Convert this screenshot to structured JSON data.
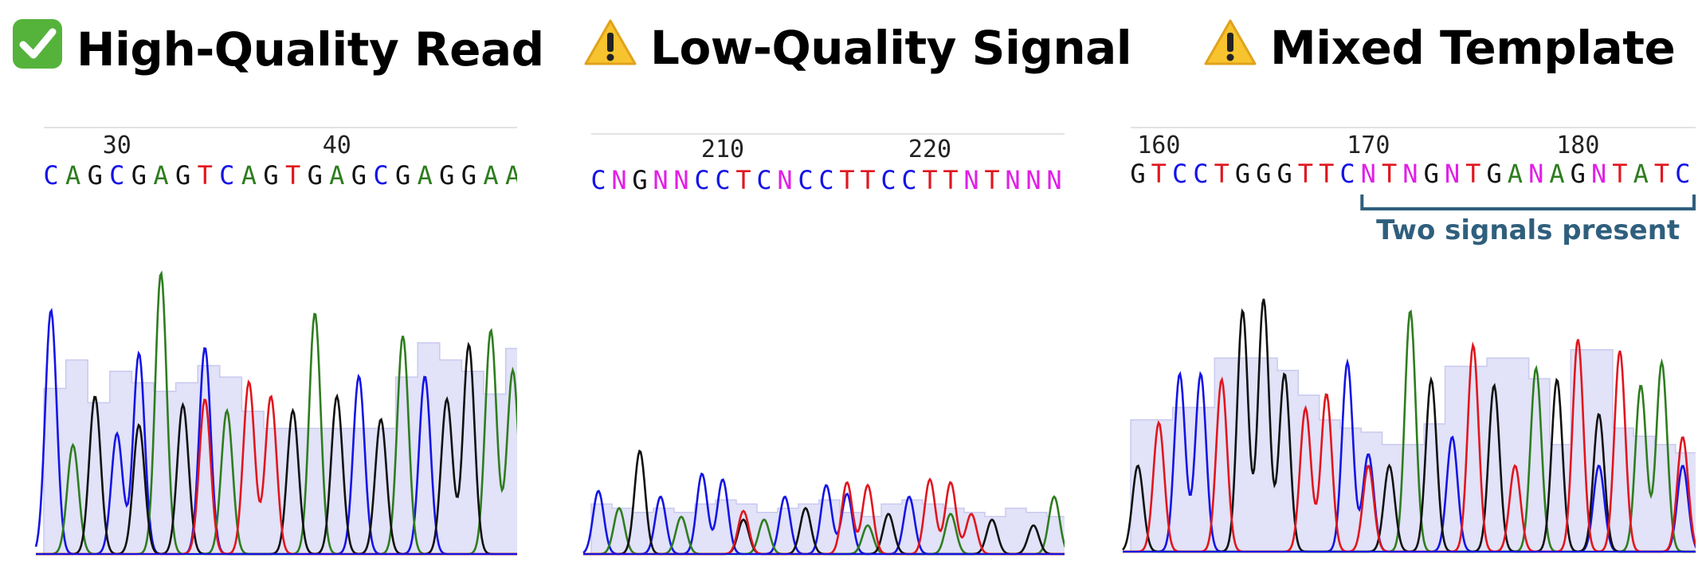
{
  "panels": [
    {
      "title": "High-Quality Read",
      "status_icon": "check-icon",
      "status_color": "#4caf50",
      "start_pos": 27,
      "sequence": "CAGCGAGTCAGTGAGCGAGGAAC",
      "position_labels": [
        "30",
        "40"
      ],
      "annotation": ""
    },
    {
      "title": "Low-Quality Signal",
      "status_icon": "warning-icon",
      "status_color": "#f7c32e",
      "start_pos": 204,
      "sequence": "CNGNNCCTCNCCTTCCTTNTNNN",
      "position_labels": [
        "210",
        "220"
      ],
      "annotation": ""
    },
    {
      "title": "Mixed Template",
      "status_icon": "warning-icon",
      "status_color": "#f7c32e",
      "start_pos": 160,
      "sequence": "GTCCTGGGTTCNTNGNTGANAGNTATC",
      "position_labels": [
        "160",
        "170",
        "180"
      ],
      "annotation": "Two signals present"
    }
  ],
  "base_colors": {
    "A": "#2e7d1f",
    "C": "#1414e6",
    "G": "#111111",
    "T": "#e0161e",
    "N": "#e11fe6"
  },
  "quality_color": "#e2e2f8",
  "annotation_color": "#2f5f7d",
  "chart_data": [
    {
      "type": "line",
      "title": "High-Quality Read",
      "x_tick_labels": [
        "30",
        "40"
      ],
      "base_calls": "CAGCGAGTCAGTGAGCGAGGAAC",
      "series": [
        {
          "name": "C",
          "peaks": [
            [
              0,
              0.85
            ],
            [
              3,
              0.42
            ],
            [
              4,
              0.7
            ],
            [
              7,
              0.72
            ],
            [
              14,
              0.62
            ],
            [
              17,
              0.62
            ]
          ]
        },
        {
          "name": "A",
          "peaks": [
            [
              1,
              0.38
            ],
            [
              5,
              0.98
            ],
            [
              8,
              0.5
            ],
            [
              12,
              0.84
            ],
            [
              16,
              0.76
            ],
            [
              20,
              0.78
            ],
            [
              21,
              0.64
            ]
          ]
        },
        {
          "name": "G",
          "peaks": [
            [
              2,
              0.55
            ],
            [
              4,
              0.45
            ],
            [
              6,
              0.52
            ],
            [
              11,
              0.5
            ],
            [
              13,
              0.55
            ],
            [
              15,
              0.47
            ],
            [
              18,
              0.54
            ],
            [
              19,
              0.73
            ]
          ]
        },
        {
          "name": "T",
          "peaks": [
            [
              7,
              0.54
            ],
            [
              9,
              0.6
            ],
            [
              10,
              0.55
            ]
          ]
        }
      ],
      "quality": [
        0.58,
        0.68,
        0.53,
        0.64,
        0.6,
        0.57,
        0.6,
        0.66,
        0.62,
        0.5,
        0.44,
        0.44,
        0.44,
        0.44,
        0.44,
        0.44,
        0.62,
        0.74,
        0.68,
        0.64,
        0.56,
        0.72,
        0.72
      ]
    },
    {
      "type": "line",
      "title": "Low-Quality Signal",
      "x_tick_labels": [
        "210",
        "220"
      ],
      "base_calls": "CNGNNCCTCNCCTTCCTTNTNNN",
      "series": [
        {
          "name": "C",
          "peaks": [
            [
              0,
              0.22
            ],
            [
              3,
              0.2
            ],
            [
              5,
              0.28
            ],
            [
              6,
              0.26
            ],
            [
              9,
              0.2
            ],
            [
              11,
              0.24
            ],
            [
              12,
              0.21
            ],
            [
              15,
              0.2
            ]
          ]
        },
        {
          "name": "A",
          "peaks": [
            [
              1,
              0.16
            ],
            [
              4,
              0.13
            ],
            [
              8,
              0.12
            ],
            [
              13,
              0.1
            ],
            [
              17,
              0.14
            ],
            [
              22,
              0.2
            ]
          ]
        },
        {
          "name": "G",
          "peaks": [
            [
              2,
              0.36
            ],
            [
              7,
              0.12
            ],
            [
              10,
              0.16
            ],
            [
              14,
              0.14
            ],
            [
              19,
              0.12
            ],
            [
              21,
              0.1
            ]
          ]
        },
        {
          "name": "T",
          "peaks": [
            [
              7,
              0.15
            ],
            [
              12,
              0.25
            ],
            [
              13,
              0.24
            ],
            [
              16,
              0.26
            ],
            [
              17,
              0.25
            ],
            [
              18,
              0.14
            ]
          ]
        }
      ],
      "quality": [
        0.24,
        0.22,
        0.2,
        0.22,
        0.2,
        0.24,
        0.26,
        0.24,
        0.2,
        0.22,
        0.24,
        0.26,
        0.2,
        0.18,
        0.24,
        0.26,
        0.24,
        0.22,
        0.2,
        0.18,
        0.22,
        0.2,
        0.18
      ]
    },
    {
      "type": "line",
      "title": "Mixed Template",
      "x_tick_labels": [
        "160",
        "170",
        "180"
      ],
      "base_calls": "GTCCTGGGTTCNTNGNTGANAGNTATC",
      "series": [
        {
          "name": "C",
          "peaks": [
            [
              2,
              0.62
            ],
            [
              3,
              0.62
            ],
            [
              10,
              0.66
            ],
            [
              11,
              0.34
            ],
            [
              15,
              0.4
            ],
            [
              22,
              0.3
            ],
            [
              26,
              0.3
            ]
          ]
        },
        {
          "name": "A",
          "peaks": [
            [
              13,
              0.84
            ],
            [
              19,
              0.64
            ],
            [
              24,
              0.58
            ],
            [
              25,
              0.66
            ]
          ]
        },
        {
          "name": "G",
          "peaks": [
            [
              0,
              0.3
            ],
            [
              5,
              0.84
            ],
            [
              6,
              0.88
            ],
            [
              7,
              0.62
            ],
            [
              12,
              0.3
            ],
            [
              14,
              0.6
            ],
            [
              17,
              0.58
            ],
            [
              20,
              0.6
            ],
            [
              22,
              0.48
            ]
          ]
        },
        {
          "name": "T",
          "peaks": [
            [
              1,
              0.45
            ],
            [
              4,
              0.6
            ],
            [
              8,
              0.5
            ],
            [
              9,
              0.55
            ],
            [
              11,
              0.3
            ],
            [
              16,
              0.72
            ],
            [
              18,
              0.3
            ],
            [
              21,
              0.74
            ],
            [
              23,
              0.7
            ],
            [
              26,
              0.4
            ]
          ]
        }
      ],
      "quality": [
        0.64,
        0.64,
        0.7,
        0.7,
        0.94,
        0.94,
        0.94,
        0.88,
        0.76,
        0.64,
        0.6,
        0.58,
        0.52,
        0.52,
        0.62,
        0.9,
        0.9,
        0.94,
        0.94,
        0.84,
        0.52,
        0.98,
        0.98,
        0.6,
        0.56,
        0.52,
        0.48
      ]
    }
  ]
}
